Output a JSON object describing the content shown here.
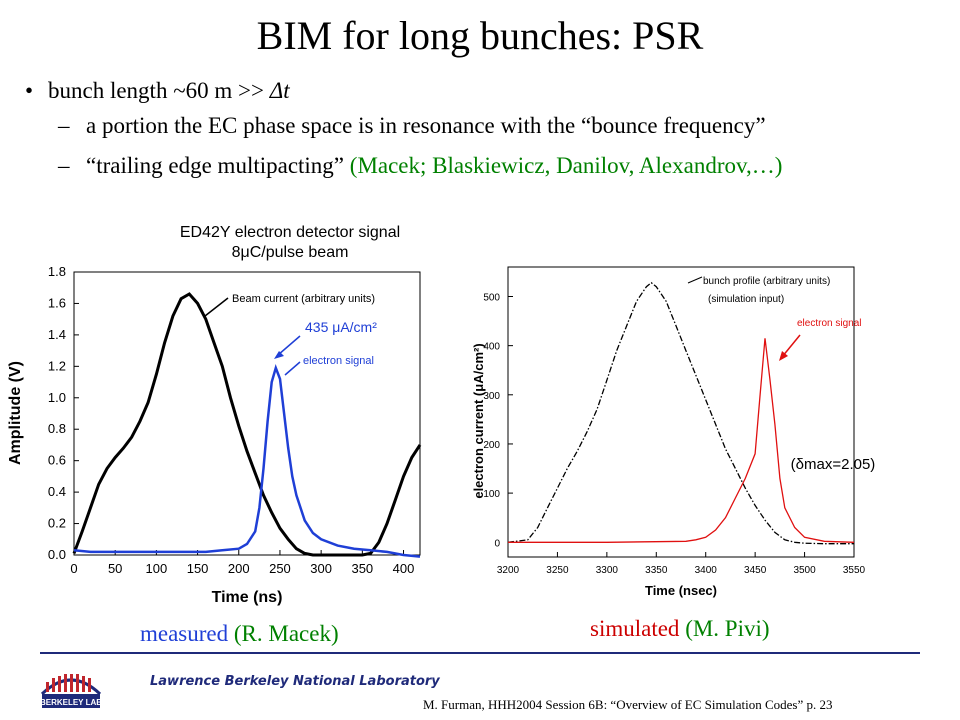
{
  "title": "BIM for long bunches: PSR",
  "bullets": {
    "b1_a": "bunch length ~60 m  >>  ",
    "b1_b": "Δt",
    "sub1": "a portion the EC phase space is in resonance with the “bounce frequency”",
    "sub2_a": "“trailing edge multipacting” ",
    "sub2_b": "(Macek; Blaskiewicz, Danilov, Alexandrov,…)"
  },
  "dash": "–",
  "bullet_glyph": "•",
  "measured_plot": {
    "title_line1": "ED42Y electron detector signal",
    "title_line2": "8μC/pulse beam",
    "xlabel": "Time (ns)",
    "ylabel": "Amplitude (V)",
    "beam_label": "Beam current (arbitrary units)",
    "peak_label": "435 μA/cm²",
    "signal_label": "electron signal",
    "caption_a": "measured",
    "caption_b": " (R. Macek)"
  },
  "simulated_plot": {
    "xlabel": "Time (nsec)",
    "ylabel": "electron current (μA/cm²)",
    "beam_label": "bunch profile (arbitrary units)",
    "input_label": "(simulation input)",
    "signal_label": "electron signal",
    "delta_label": "(δmax=2.05)",
    "caption_a": "simulated",
    "caption_b": " (M. Pivi)"
  },
  "footer": {
    "lab_name": "Lawrence Berkeley National Laboratory",
    "citation": "M. Furman, HHH2004 Session 6B: “Overview of EC Simulation Codes”  p. 23",
    "logo_text": "BERKELEY LAB"
  },
  "colors": {
    "beam": "#000000",
    "measured_signal": "#1f3fd6",
    "sim_signal": "#e01010",
    "green": "#008000",
    "footer_blue": "#1f2a7a"
  },
  "chart_data": [
    {
      "type": "line",
      "title": "ED42Y electron detector signal 8μC/pulse beam",
      "xlabel": "Time (ns)",
      "ylabel": "Amplitude (V)",
      "xlim": [
        0,
        420
      ],
      "ylim": [
        0.0,
        1.8
      ],
      "xticks": [
        0,
        50,
        100,
        150,
        200,
        250,
        300,
        350,
        400
      ],
      "yticks": [
        "0.0",
        "0.2",
        "0.4",
        "0.6",
        "0.8",
        "1.0",
        "1.2",
        "1.4",
        "1.6",
        "1.8"
      ],
      "series": [
        {
          "name": "Beam current (arbitrary units)",
          "x": [
            0,
            10,
            20,
            30,
            40,
            50,
            60,
            70,
            80,
            90,
            100,
            110,
            120,
            130,
            140,
            150,
            160,
            170,
            180,
            190,
            200,
            210,
            220,
            230,
            240,
            250,
            260,
            270,
            280,
            290,
            300,
            310,
            320,
            330,
            340,
            350,
            360,
            370,
            380,
            390,
            400,
            410,
            420
          ],
          "y": [
            0.01,
            0.15,
            0.3,
            0.45,
            0.55,
            0.62,
            0.68,
            0.75,
            0.85,
            0.97,
            1.15,
            1.35,
            1.52,
            1.63,
            1.66,
            1.6,
            1.5,
            1.35,
            1.2,
            1.0,
            0.82,
            0.66,
            0.52,
            0.38,
            0.27,
            0.17,
            0.1,
            0.04,
            0.01,
            0.0,
            0.0,
            0.0,
            0.0,
            0.0,
            0.0,
            0.0,
            0.01,
            0.08,
            0.2,
            0.35,
            0.5,
            0.62,
            0.7
          ]
        },
        {
          "name": "electron signal",
          "x": [
            0,
            20,
            40,
            60,
            80,
            100,
            120,
            140,
            160,
            180,
            200,
            210,
            220,
            225,
            230,
            235,
            240,
            245,
            250,
            255,
            260,
            265,
            270,
            280,
            290,
            300,
            320,
            340,
            360,
            380,
            400,
            420
          ],
          "y": [
            0.03,
            0.02,
            0.02,
            0.02,
            0.02,
            0.02,
            0.02,
            0.02,
            0.02,
            0.03,
            0.04,
            0.07,
            0.15,
            0.3,
            0.55,
            0.85,
            1.1,
            1.19,
            1.12,
            0.9,
            0.68,
            0.5,
            0.38,
            0.22,
            0.14,
            0.1,
            0.06,
            0.04,
            0.03,
            0.02,
            0.0,
            -0.01
          ]
        }
      ]
    },
    {
      "type": "line",
      "title": "",
      "xlabel": "Time (nsec)",
      "ylabel": "electron current (μA/cm²)",
      "xlim": [
        3200,
        3550
      ],
      "ylim": [
        -30,
        560
      ],
      "xticks": [
        3200,
        3250,
        3300,
        3350,
        3400,
        3450,
        3500,
        3550
      ],
      "yticks": [
        0,
        100,
        200,
        300,
        400,
        500
      ],
      "series": [
        {
          "name": "bunch profile (arbitrary units)",
          "x": [
            3200,
            3220,
            3230,
            3240,
            3250,
            3260,
            3270,
            3280,
            3290,
            3300,
            3310,
            3320,
            3330,
            3340,
            3345,
            3350,
            3360,
            3370,
            3380,
            3390,
            3400,
            3410,
            3420,
            3430,
            3440,
            3450,
            3460,
            3470,
            3480,
            3490,
            3500,
            3520,
            3550
          ],
          "y": [
            0,
            5,
            30,
            70,
            110,
            150,
            185,
            225,
            270,
            330,
            390,
            440,
            490,
            520,
            528,
            520,
            490,
            440,
            390,
            340,
            290,
            240,
            190,
            150,
            110,
            75,
            45,
            20,
            5,
            0,
            -2,
            -3,
            -3
          ]
        },
        {
          "name": "electron signal",
          "x": [
            3200,
            3300,
            3380,
            3390,
            3400,
            3410,
            3420,
            3430,
            3440,
            3450,
            3455,
            3460,
            3465,
            3470,
            3475,
            3480,
            3490,
            3500,
            3520,
            3550
          ],
          "y": [
            0,
            0,
            2,
            5,
            10,
            25,
            50,
            90,
            130,
            180,
            300,
            415,
            330,
            240,
            130,
            70,
            30,
            10,
            2,
            0
          ]
        }
      ]
    }
  ]
}
